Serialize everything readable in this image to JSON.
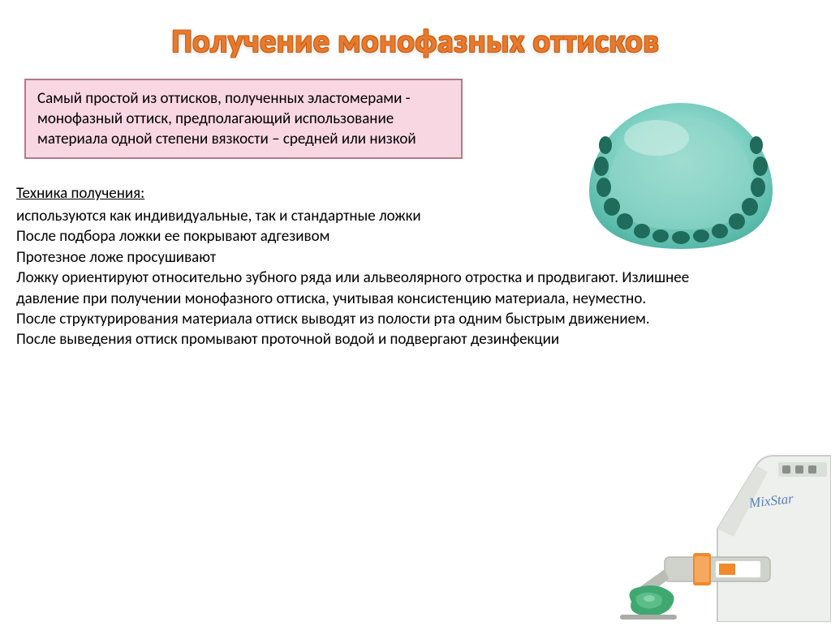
{
  "title": "Получение монофазных оттисков",
  "highlight": "Самый простой из оттисков, полученных эластомерами - монофазный оттиск, предполагающий использование материала одной степени вязкости – средней или низкой",
  "subheading": "Техника получения:",
  "body": "используются как индивидуальные, так и стандартные ложки\nПосле подбора ложки ее покрывают адгезивом\nПротезное ложе просушивают\nЛожку ориентируют относительно зубного ряда или альвеолярного отростка и продвигают. Излишнее давление при получении монофазного оттиска, учитывая консистенцию материала, неуместно.\nПосле структурирования материала оттиск выводят из полости рта одним быстрым движением.\nПосле выведения оттиск промывают проточной водой и подвергают дезинфекции",
  "device_label": "MixStar",
  "colors": {
    "title": "#e67a2e",
    "title_outline": "#d05a0c",
    "box_bg": "#f8d7e3",
    "box_border": "#b37a8a",
    "impression_light": "#a8e0d8",
    "impression_mid": "#6cc7ba",
    "impression_dark": "#2a8576",
    "device_body": "#eef0ed",
    "device_shadow": "#c8ccc6",
    "device_accent": "#f08a2c",
    "device_green": "#3fa870",
    "device_text": "#5a7fb8"
  }
}
